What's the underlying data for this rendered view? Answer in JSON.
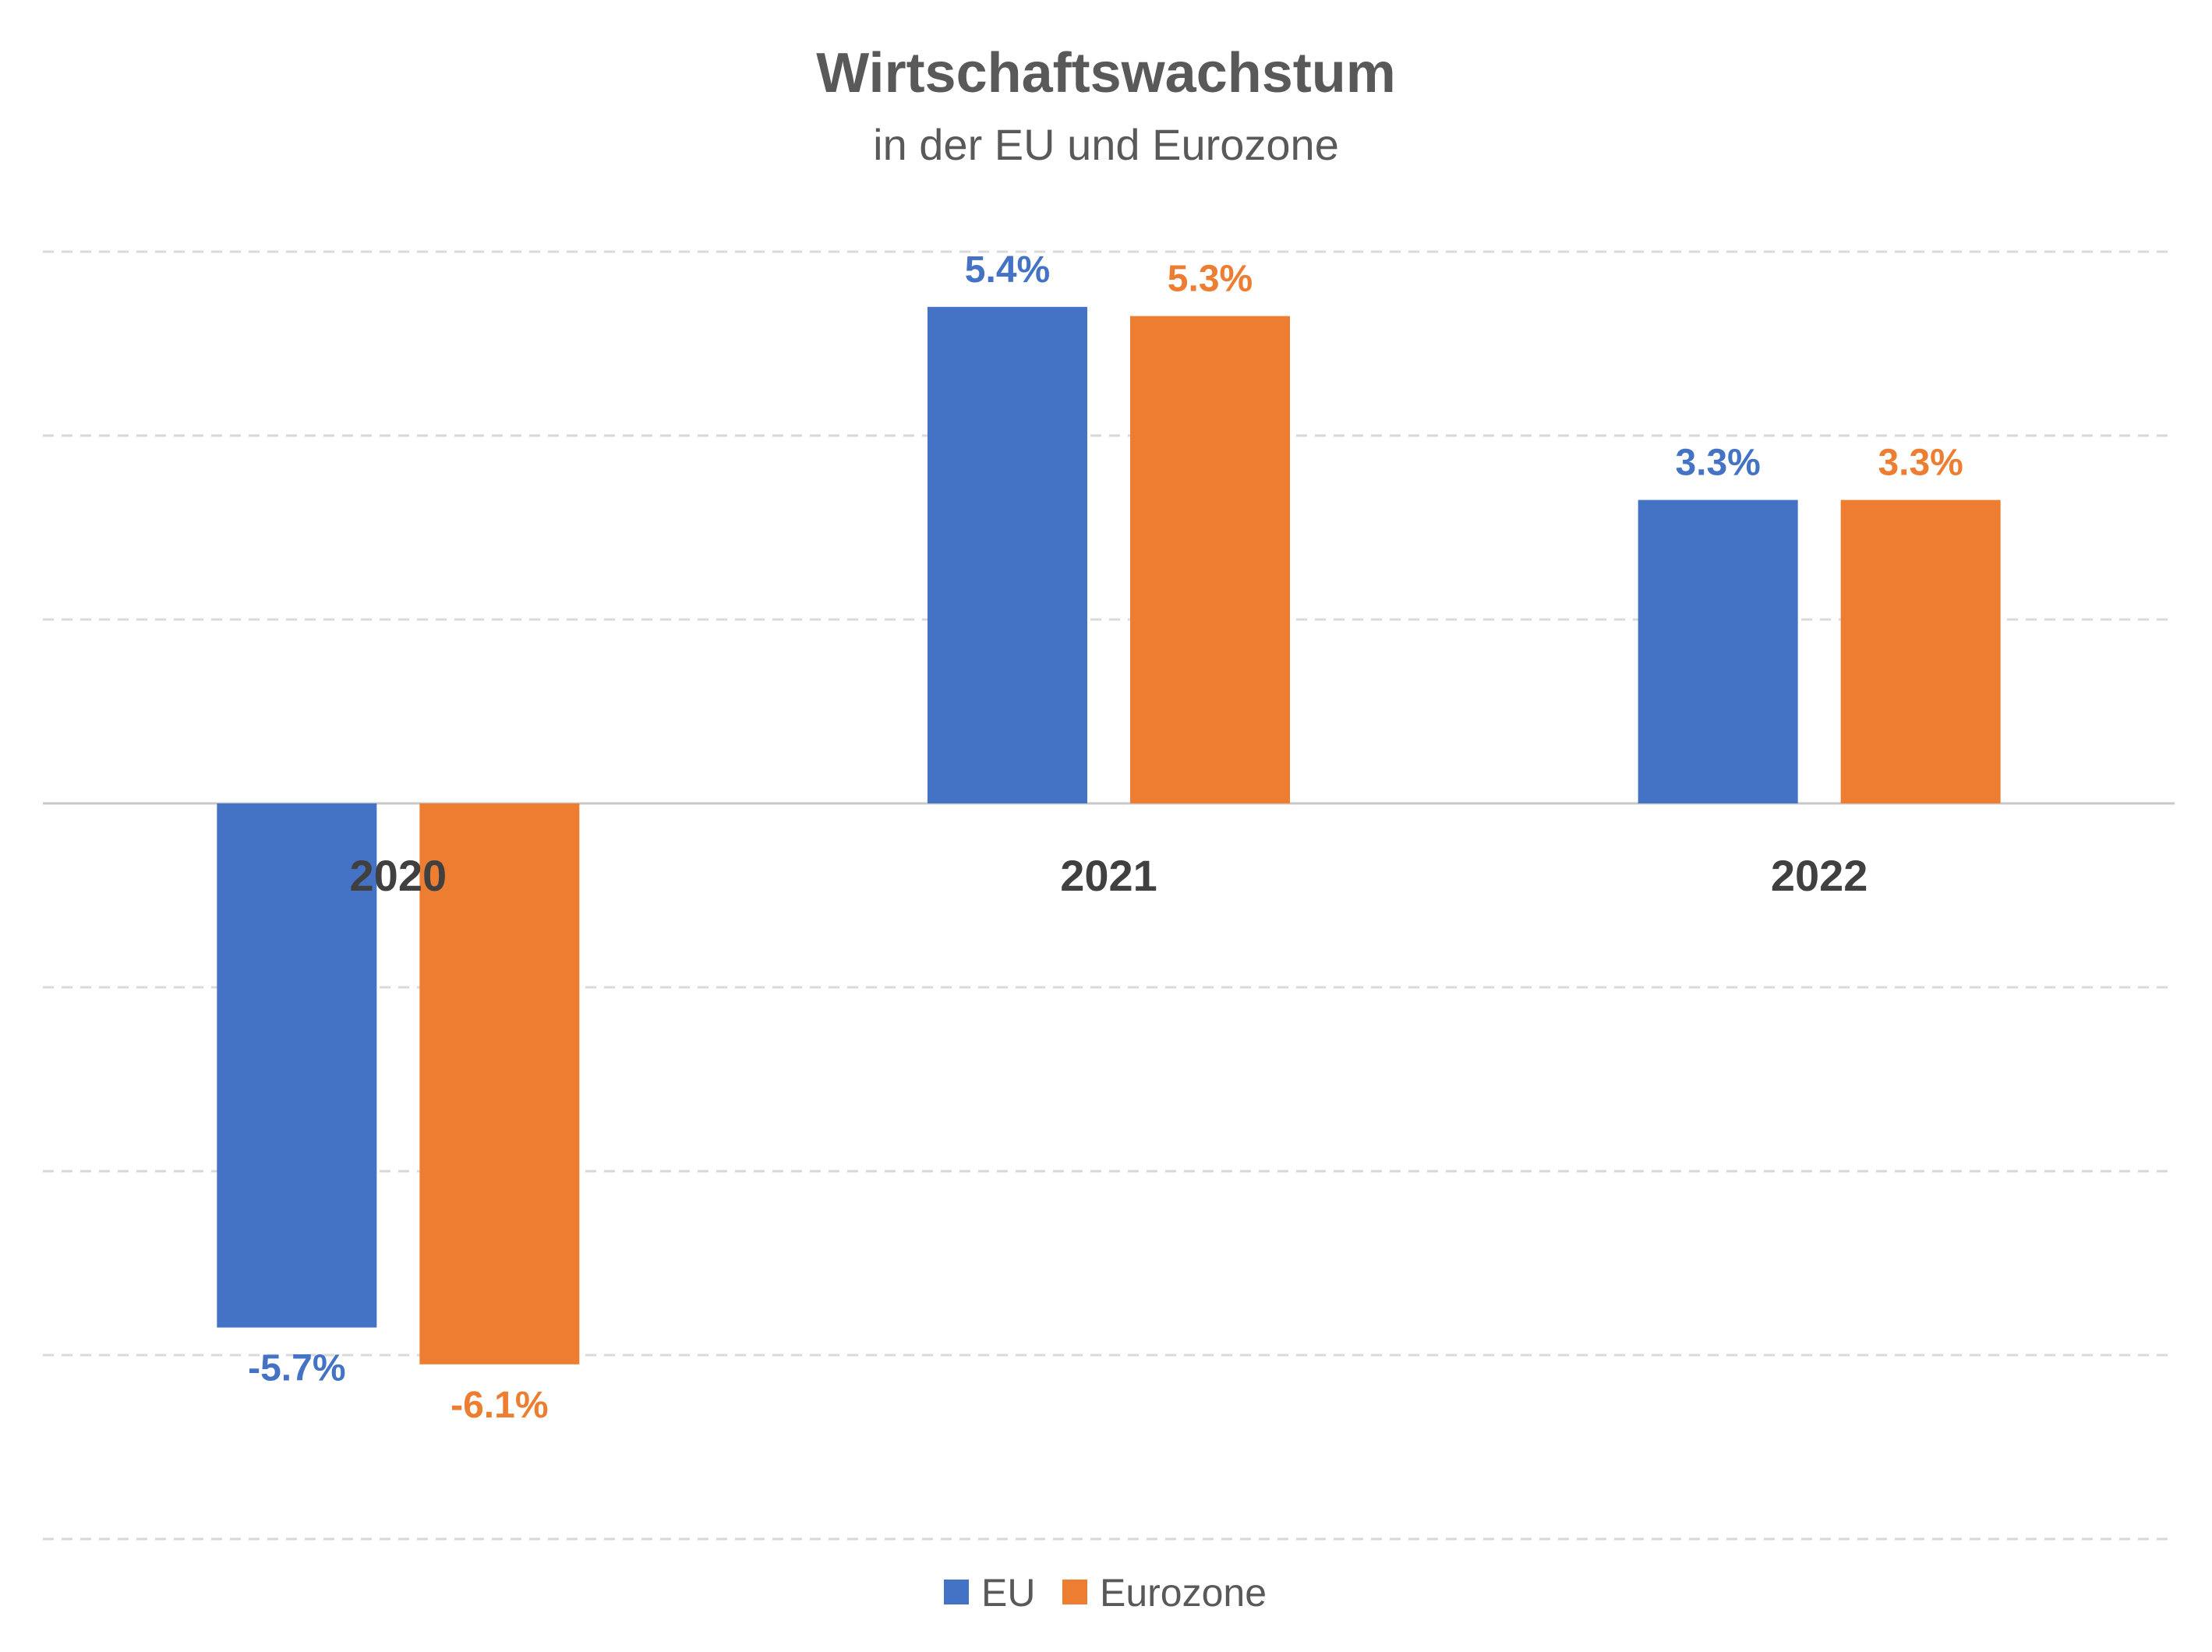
{
  "chart_data": {
    "type": "bar",
    "title": "Wirtschaftswachstum",
    "subtitle": "in der EU und Eurozone",
    "categories": [
      "2020",
      "2021",
      "2022"
    ],
    "series": [
      {
        "name": "EU",
        "color": "#4472C4",
        "values": [
          -5.7,
          5.4,
          3.3
        ],
        "labels": [
          "-5.7%",
          "5.4%",
          "3.3%"
        ]
      },
      {
        "name": "Eurozone",
        "color": "#ED7D31",
        "values": [
          -6.1,
          5.3,
          3.3
        ],
        "labels": [
          "-6.1%",
          "5.3%",
          "3.3%"
        ]
      }
    ],
    "ylim": [
      -8,
      6
    ],
    "grid": true,
    "legend": "bottom"
  }
}
